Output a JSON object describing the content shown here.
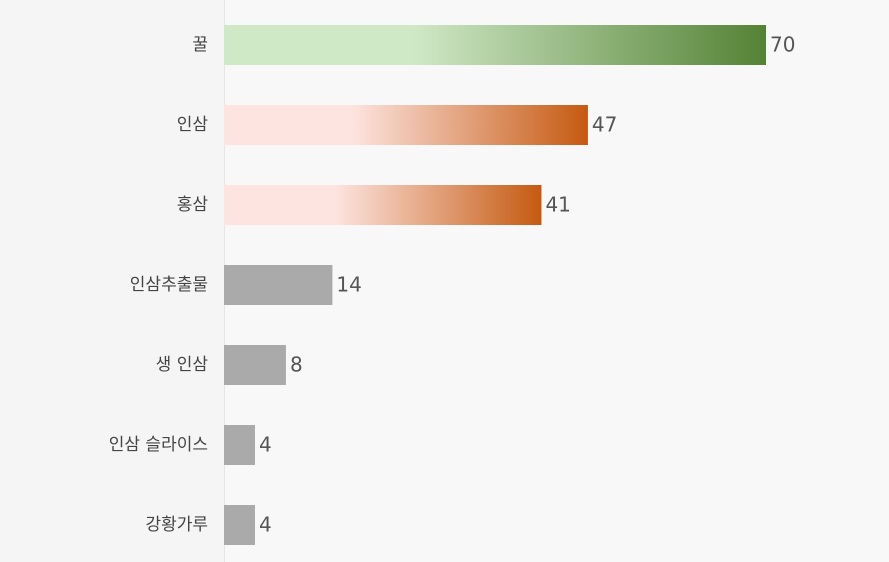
{
  "chart_data": {
    "type": "bar",
    "orientation": "horizontal",
    "categories": [
      "꿀",
      "인삼",
      "홍삼",
      "인삼추출물",
      "생 인삼",
      "인삼 슬라이스",
      "강황가루"
    ],
    "values": [
      70,
      47,
      41,
      14,
      8,
      4,
      4
    ],
    "colors": [
      [
        "#cfe8c6",
        "#548235"
      ],
      [
        "#fde4e0",
        "#c55a11"
      ],
      [
        "#fde4e0",
        "#c55a11"
      ],
      [
        "#aaaaaa",
        "#aaaaaa"
      ],
      [
        "#aaaaaa",
        "#aaaaaa"
      ],
      [
        "#aaaaaa",
        "#aaaaaa"
      ],
      [
        "#aaaaaa",
        "#aaaaaa"
      ]
    ]
  }
}
